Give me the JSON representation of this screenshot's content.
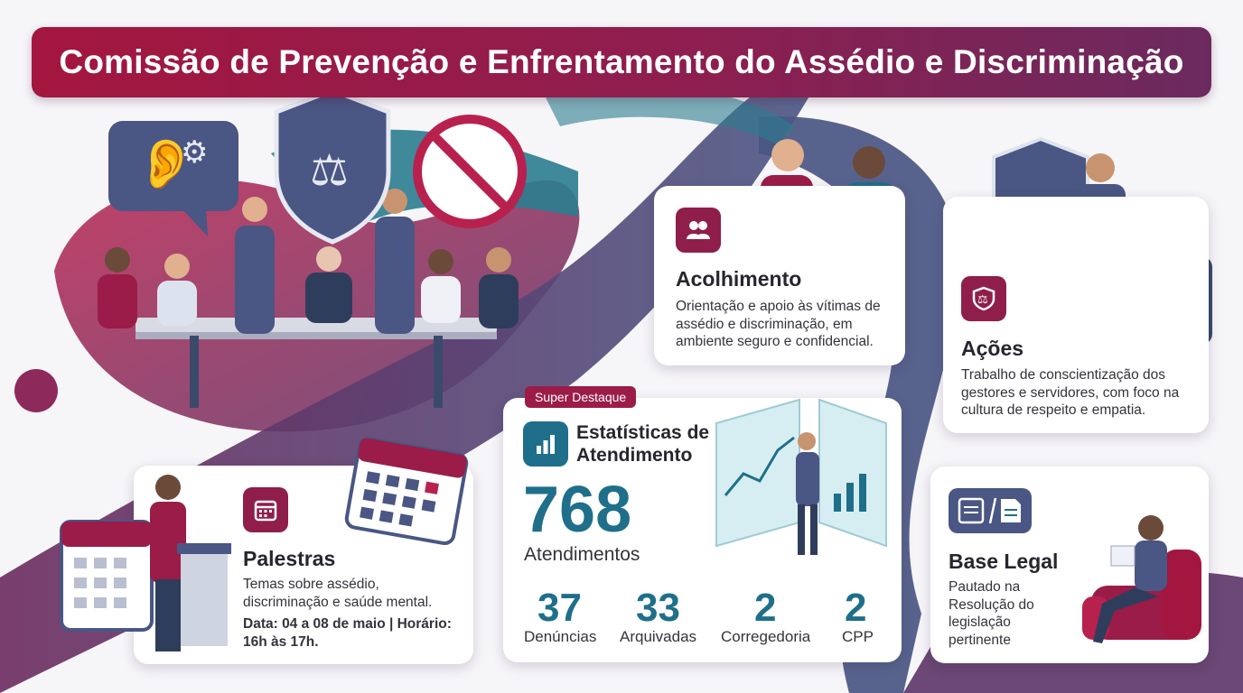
{
  "title": "Comissão de Prevenção e Enfrentamento do Assédio e Discriminação",
  "colors": {
    "brand": "#9b1c48",
    "brand_dark": "#6b2a5e",
    "teal": "#1f6f8b",
    "slate": "#4a5683"
  },
  "acolhimento": {
    "icon": "people-icon",
    "heading": "Acolhimento",
    "text_lines": [
      "Orientação e apoio às vítimas de",
      "assédio e discriminação, em",
      "ambiente seguro e confidencial."
    ]
  },
  "acoes": {
    "icon": "shield-scales-icon",
    "heading": "Ações",
    "text_lines": [
      "Trabalho de conscientização dos",
      "gestores e servidores, com foco na",
      "cultura de respeito e empatia."
    ]
  },
  "palestras": {
    "icon": "calendar-icon",
    "heading": "Palestras",
    "text_lines": [
      "Temas sobre assédio,",
      "discriminação e saúde mental."
    ],
    "schedule_lines": [
      "Data: 04 a 08 de maio | Horário:",
      "16h às 17h."
    ]
  },
  "stats": {
    "tag": "Super Destaque",
    "icon": "bar-chart-icon",
    "heading_lines": [
      "Estatísticas de",
      "Atendimento"
    ],
    "total_value": "768",
    "total_label": "Atendimentos",
    "items": [
      {
        "value": "37",
        "label": "Denúncias"
      },
      {
        "value": "33",
        "label": "Arquivadas"
      },
      {
        "value": "2",
        "label": "Corregedoria"
      },
      {
        "value": "2",
        "label": "CPP"
      }
    ]
  },
  "base_legal": {
    "icon": "documents-icon",
    "heading": "Base Legal",
    "text_lines": [
      "Pautado na",
      "Resolução do",
      "legislação",
      "pertinente"
    ]
  }
}
